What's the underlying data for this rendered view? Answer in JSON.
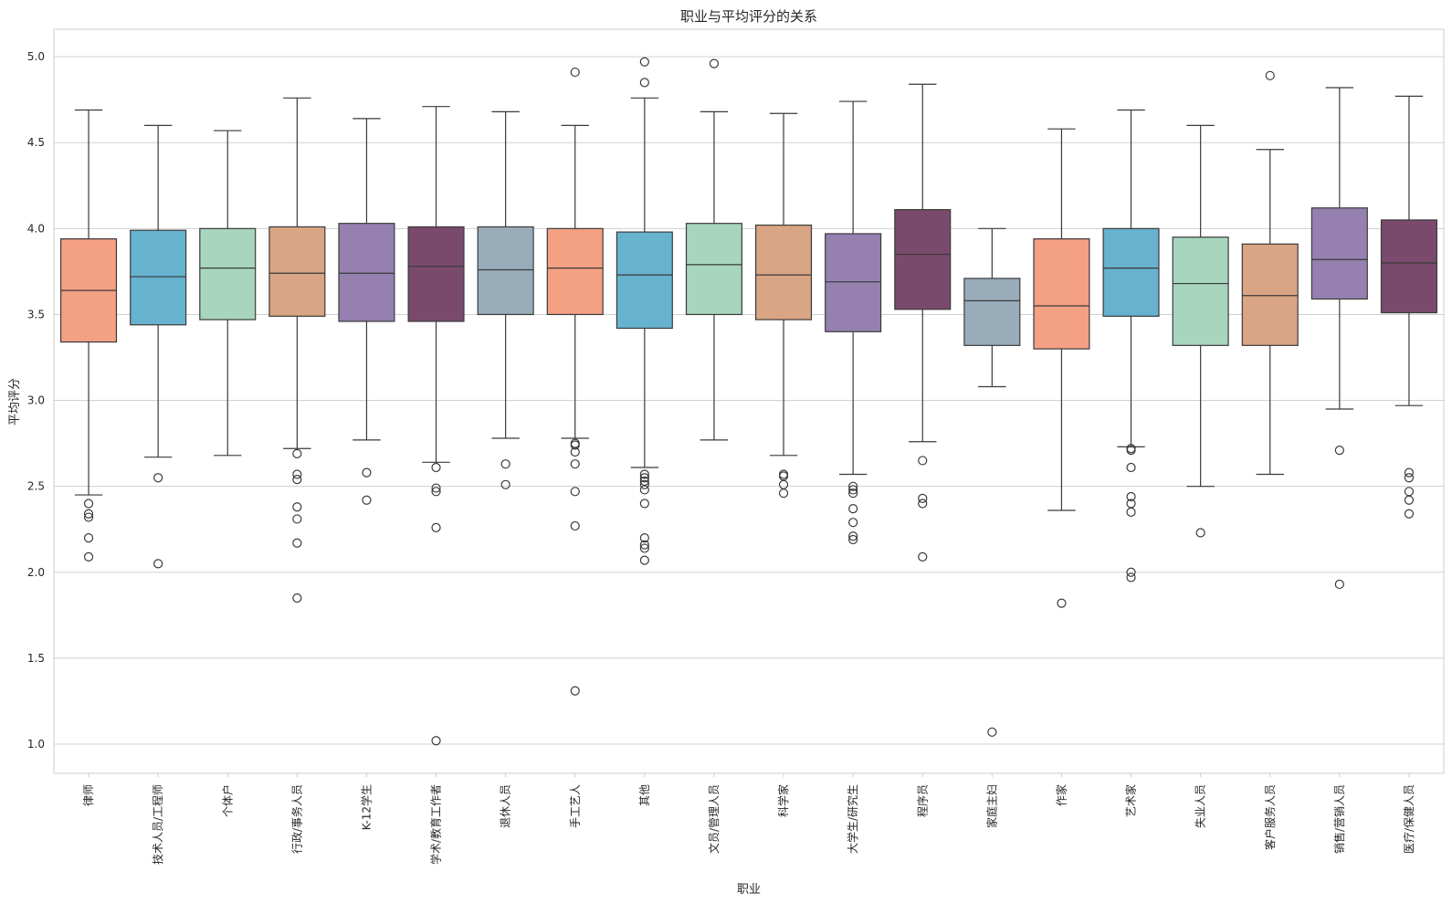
{
  "chart_data": {
    "type": "box",
    "title": "职业与平均评分的关系",
    "xlabel": "职业",
    "ylabel": "平均评分",
    "ylim": [
      0.83,
      5.16
    ],
    "yticks": [
      "1.0",
      "1.5",
      "2.0",
      "2.5",
      "3.0",
      "3.5",
      "4.0",
      "4.5",
      "5.0"
    ],
    "grid": "horizontal",
    "palette": [
      "#f4a083",
      "#66b2cf",
      "#a7d5bd",
      "#d9a584",
      "#9580b0",
      "#7a4a6d",
      "#99acba"
    ],
    "categories": [
      {
        "label": "律师",
        "whislo": 2.45,
        "q1": 3.34,
        "med": 3.64,
        "q3": 3.94,
        "whishi": 4.69,
        "fliers": [
          2.4,
          2.34,
          2.32,
          2.2,
          2.09
        ]
      },
      {
        "label": "技术人员/工程师",
        "whislo": 2.67,
        "q1": 3.44,
        "med": 3.72,
        "q3": 3.99,
        "whishi": 4.6,
        "fliers": [
          2.55,
          2.05
        ]
      },
      {
        "label": "个体户",
        "whislo": 2.68,
        "q1": 3.47,
        "med": 3.77,
        "q3": 4.0,
        "whishi": 4.57,
        "fliers": []
      },
      {
        "label": "行政/事务人员",
        "whislo": 2.72,
        "q1": 3.49,
        "med": 3.74,
        "q3": 4.01,
        "whishi": 4.76,
        "fliers": [
          2.69,
          2.57,
          2.54,
          2.38,
          2.31,
          2.17,
          1.85
        ]
      },
      {
        "label": "K-12学生",
        "whislo": 2.77,
        "q1": 3.46,
        "med": 3.74,
        "q3": 4.03,
        "whishi": 4.64,
        "fliers": [
          2.58,
          2.42
        ]
      },
      {
        "label": "学术/教育工作者",
        "whislo": 2.64,
        "q1": 3.46,
        "med": 3.78,
        "q3": 4.01,
        "whishi": 4.71,
        "fliers": [
          2.61,
          2.49,
          2.47,
          2.26,
          1.02
        ]
      },
      {
        "label": "退休人员",
        "whislo": 2.78,
        "q1": 3.5,
        "med": 3.76,
        "q3": 4.01,
        "whishi": 4.68,
        "fliers": [
          2.63,
          2.51
        ]
      },
      {
        "label": "手工艺人",
        "whislo": 2.78,
        "q1": 3.5,
        "med": 3.77,
        "q3": 4.0,
        "whishi": 4.6,
        "fliers": [
          4.91,
          2.75,
          2.74,
          2.7,
          2.63,
          2.47,
          2.27,
          1.31
        ]
      },
      {
        "label": "其他",
        "whislo": 2.61,
        "q1": 3.42,
        "med": 3.73,
        "q3": 3.98,
        "whishi": 4.76,
        "fliers": [
          4.97,
          4.85,
          2.57,
          2.55,
          2.53,
          2.51,
          2.48,
          2.4,
          2.2,
          2.16,
          2.14,
          2.07
        ]
      },
      {
        "label": "文员/管理人员",
        "whislo": 2.77,
        "q1": 3.5,
        "med": 3.79,
        "q3": 4.03,
        "whishi": 4.68,
        "fliers": [
          4.96
        ]
      },
      {
        "label": "科学家",
        "whislo": 2.68,
        "q1": 3.47,
        "med": 3.73,
        "q3": 4.02,
        "whishi": 4.67,
        "fliers": [
          2.57,
          2.56,
          2.51,
          2.46
        ]
      },
      {
        "label": "大学生/研究生",
        "whislo": 2.57,
        "q1": 3.4,
        "med": 3.69,
        "q3": 3.97,
        "whishi": 4.74,
        "fliers": [
          2.5,
          2.48,
          2.46,
          2.37,
          2.29,
          2.21,
          2.19
        ]
      },
      {
        "label": "程序员",
        "whislo": 2.76,
        "q1": 3.53,
        "med": 3.85,
        "q3": 4.11,
        "whishi": 4.84,
        "fliers": [
          2.65,
          2.43,
          2.4,
          2.09
        ]
      },
      {
        "label": "家庭主妇",
        "whislo": 3.08,
        "q1": 3.32,
        "med": 3.58,
        "q3": 3.71,
        "whishi": 4.0,
        "fliers": [
          1.07
        ]
      },
      {
        "label": "作家",
        "whislo": 2.36,
        "q1": 3.3,
        "med": 3.55,
        "q3": 3.94,
        "whishi": 4.58,
        "fliers": [
          1.82
        ]
      },
      {
        "label": "艺术家",
        "whislo": 2.73,
        "q1": 3.49,
        "med": 3.77,
        "q3": 4.0,
        "whishi": 4.69,
        "fliers": [
          2.72,
          2.71,
          2.61,
          2.44,
          2.4,
          2.35,
          2.0,
          1.97
        ]
      },
      {
        "label": "失业人员",
        "whislo": 2.5,
        "q1": 3.32,
        "med": 3.68,
        "q3": 3.95,
        "whishi": 4.6,
        "fliers": [
          2.23
        ]
      },
      {
        "label": "客户服务人员",
        "whislo": 2.57,
        "q1": 3.32,
        "med": 3.61,
        "q3": 3.91,
        "whishi": 4.46,
        "fliers": [
          4.89
        ]
      },
      {
        "label": "销售/营销人员",
        "whislo": 2.95,
        "q1": 3.59,
        "med": 3.82,
        "q3": 4.12,
        "whishi": 4.82,
        "fliers": [
          2.71,
          1.93
        ]
      },
      {
        "label": "医疗/保健人员",
        "whislo": 2.97,
        "q1": 3.51,
        "med": 3.8,
        "q3": 4.05,
        "whishi": 4.77,
        "fliers": [
          2.58,
          2.55,
          2.47,
          2.42,
          2.34
        ]
      }
    ]
  }
}
